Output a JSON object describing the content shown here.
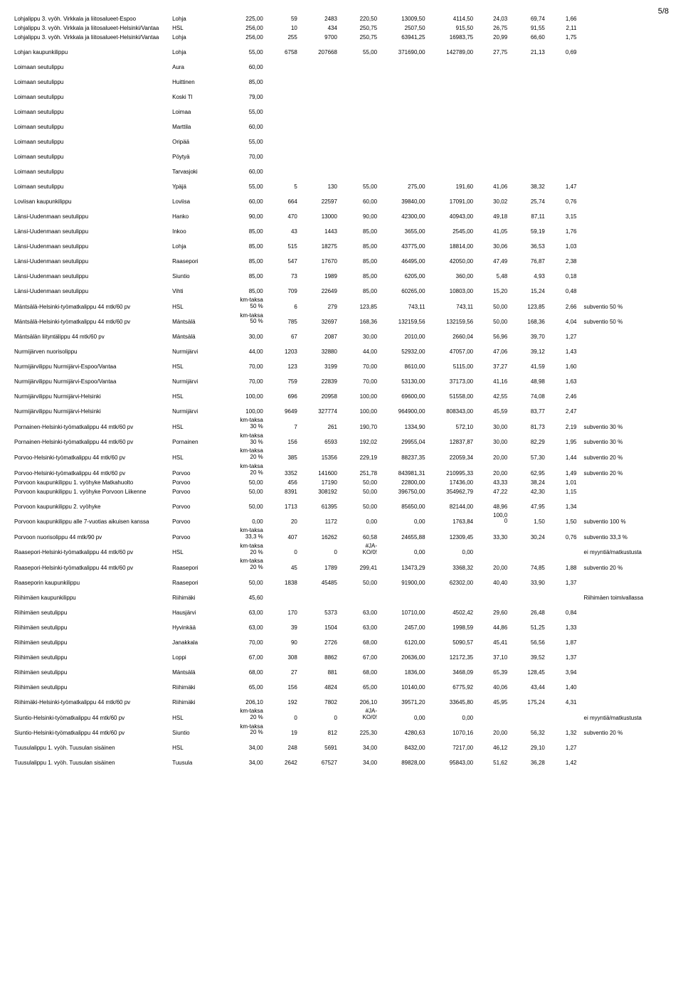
{
  "page_number": "5/8",
  "rows": [
    {
      "sep": false,
      "c": [
        "Lohjalippu 3. vyöh. Virkkala ja liitosalueet-Espoo",
        "Lohja",
        "225,00",
        "59",
        "2483",
        "220,50",
        "13009,50",
        "4114,50",
        "24,03",
        "69,74",
        "1,66",
        ""
      ]
    },
    {
      "sep": false,
      "c": [
        "Lohjalippu 3. vyöh. Virkkala ja liitosalueet-Helsinki/Vantaa",
        "HSL",
        "256,00",
        "10",
        "434",
        "250,75",
        "2507,50",
        "915,50",
        "26,75",
        "91,55",
        "2,11",
        ""
      ]
    },
    {
      "sep": false,
      "c": [
        "Lohjalippu 3. vyöh. Virkkala ja liitosalueet-Helsinki/Vantaa",
        "Lohja",
        "256,00",
        "255",
        "9700",
        "250,75",
        "63941,25",
        "16983,75",
        "20,99",
        "66,60",
        "1,75",
        ""
      ]
    },
    {
      "sep": true,
      "c": [
        "Lohjan kaupunkilippu",
        "Lohja",
        "55,00",
        "6758",
        "207668",
        "55,00",
        "371690,00",
        "142789,00",
        "27,75",
        "21,13",
        "0,69",
        ""
      ]
    },
    {
      "sep": true,
      "c": [
        "Loimaan seutulippu",
        "Aura",
        "60,00",
        "",
        "",
        "",
        "",
        "",
        "",
        "",
        "",
        ""
      ]
    },
    {
      "sep": true,
      "c": [
        "Loimaan seutulippu",
        "Huittinen",
        "85,00",
        "",
        "",
        "",
        "",
        "",
        "",
        "",
        "",
        ""
      ]
    },
    {
      "sep": true,
      "c": [
        "Loimaan seutulippu",
        "Koski Tl",
        "79,00",
        "",
        "",
        "",
        "",
        "",
        "",
        "",
        "",
        ""
      ]
    },
    {
      "sep": true,
      "c": [
        "Loimaan seutulippu",
        "Loimaa",
        "55,00",
        "",
        "",
        "",
        "",
        "",
        "",
        "",
        "",
        ""
      ]
    },
    {
      "sep": true,
      "c": [
        "Loimaan seutulippu",
        "Marttila",
        "60,00",
        "",
        "",
        "",
        "",
        "",
        "",
        "",
        "",
        ""
      ]
    },
    {
      "sep": true,
      "c": [
        "Loimaan seutulippu",
        "Oripää",
        "55,00",
        "",
        "",
        "",
        "",
        "",
        "",
        "",
        "",
        ""
      ]
    },
    {
      "sep": true,
      "c": [
        "Loimaan seutulippu",
        "Pöytyä",
        "70,00",
        "",
        "",
        "",
        "",
        "",
        "",
        "",
        "",
        ""
      ]
    },
    {
      "sep": true,
      "c": [
        "Loimaan seutulippu",
        "Tarvasjoki",
        "60,00",
        "",
        "",
        "",
        "",
        "",
        "",
        "",
        "",
        ""
      ]
    },
    {
      "sep": true,
      "c": [
        "Loimaan seutulippu",
        "Ypäjä",
        "55,00",
        "5",
        "130",
        "55,00",
        "275,00",
        "191,60",
        "41,06",
        "38,32",
        "1,47",
        ""
      ]
    },
    {
      "sep": true,
      "c": [
        "Loviisan kaupunkilippu",
        "Loviisa",
        "60,00",
        "664",
        "22597",
        "60,00",
        "39840,00",
        "17091,00",
        "30,02",
        "25,74",
        "0,76",
        ""
      ]
    },
    {
      "sep": true,
      "c": [
        "Länsi-Uudenmaan seutulippu",
        "Hanko",
        "90,00",
        "470",
        "13000",
        "90,00",
        "42300,00",
        "40943,00",
        "49,18",
        "87,11",
        "3,15",
        ""
      ]
    },
    {
      "sep": true,
      "c": [
        "Länsi-Uudenmaan seutulippu",
        "Inkoo",
        "85,00",
        "43",
        "1443",
        "85,00",
        "3655,00",
        "2545,00",
        "41,05",
        "59,19",
        "1,76",
        ""
      ]
    },
    {
      "sep": true,
      "c": [
        "Länsi-Uudenmaan seutulippu",
        "Lohja",
        "85,00",
        "515",
        "18275",
        "85,00",
        "43775,00",
        "18814,00",
        "30,06",
        "36,53",
        "1,03",
        ""
      ]
    },
    {
      "sep": true,
      "c": [
        "Länsi-Uudenmaan seutulippu",
        "Raasepori",
        "85,00",
        "547",
        "17670",
        "85,00",
        "46495,00",
        "42050,00",
        "47,49",
        "76,87",
        "2,38",
        ""
      ]
    },
    {
      "sep": true,
      "c": [
        "Länsi-Uudenmaan seutulippu",
        "Siuntio",
        "85,00",
        "73",
        "1989",
        "85,00",
        "6205,00",
        "360,00",
        "5,48",
        "4,93",
        "0,18",
        ""
      ]
    },
    {
      "sep": true,
      "c": [
        "Länsi-Uudenmaan seutulippu",
        "Vihti",
        "85,00",
        "709",
        "22649",
        "85,00",
        "60265,00",
        "10803,00",
        "15,20",
        "15,24",
        "0,48",
        ""
      ]
    },
    {
      "sep": false,
      "c": [
        "Mäntsälä-Helsinki-työmatkalippu 44 mtk/60 pv",
        "HSL",
        "km-taksa 50 %",
        "6",
        "279",
        "123,85",
        "743,11",
        "743,11",
        "50,00",
        "123,85",
        "2,66",
        "subventio 50 %"
      ]
    },
    {
      "sep": false,
      "c": [
        "Mäntsälä-Helsinki-työmatkalippu 44 mtk/60 pv",
        "Mäntsälä",
        "km-taksa 50 %",
        "785",
        "32697",
        "168,36",
        "132159,56",
        "132159,56",
        "50,00",
        "168,36",
        "4,04",
        "subventio 50 %"
      ]
    },
    {
      "sep": true,
      "c": [
        "Mäntsälän liityntälippu 44 mtk/60 pv",
        "Mäntsälä",
        "30,00",
        "67",
        "2087",
        "30,00",
        "2010,00",
        "2660,04",
        "56,96",
        "39,70",
        "1,27",
        ""
      ]
    },
    {
      "sep": true,
      "c": [
        "Nurmijärven nuorisolippu",
        "Nurmijärvi",
        "44,00",
        "1203",
        "32880",
        "44,00",
        "52932,00",
        "47057,00",
        "47,06",
        "39,12",
        "1,43",
        ""
      ]
    },
    {
      "sep": true,
      "c": [
        "Nurmijärvilippu Nurmijärvi-Espoo/Vantaa",
        "HSL",
        "70,00",
        "123",
        "3199",
        "70,00",
        "8610,00",
        "5115,00",
        "37,27",
        "41,59",
        "1,60",
        ""
      ]
    },
    {
      "sep": true,
      "c": [
        "Nurmijärvilippu Nurmijärvi-Espoo/Vantaa",
        "Nurmijärvi",
        "70,00",
        "759",
        "22839",
        "70,00",
        "53130,00",
        "37173,00",
        "41,16",
        "48,98",
        "1,63",
        ""
      ]
    },
    {
      "sep": true,
      "c": [
        "Nurmijärvilippu Nurmijärvi-Helsinki",
        "HSL",
        "100,00",
        "696",
        "20958",
        "100,00",
        "69600,00",
        "51558,00",
        "42,55",
        "74,08",
        "2,46",
        ""
      ]
    },
    {
      "sep": true,
      "c": [
        "Nurmijärvilippu Nurmijärvi-Helsinki",
        "Nurmijärvi",
        "100,00",
        "9649",
        "327774",
        "100,00",
        "964900,00",
        "808343,00",
        "45,59",
        "83,77",
        "2,47",
        ""
      ]
    },
    {
      "sep": false,
      "c": [
        "Pornainen-Helsinki-työmatkalippu 44 mtk/60 pv",
        "HSL",
        "km-taksa 30 %",
        "7",
        "261",
        "190,70",
        "1334,90",
        "572,10",
        "30,00",
        "81,73",
        "2,19",
        "subventio 30 %"
      ]
    },
    {
      "sep": false,
      "c": [
        "Pornainen-Helsinki-työmatkalippu 44 mtk/60 pv",
        "Pornainen",
        "km-taksa 30 %",
        "156",
        "6593",
        "192,02",
        "29955,04",
        "12837,87",
        "30,00",
        "82,29",
        "1,95",
        "subventio 30 %"
      ]
    },
    {
      "sep": false,
      "c": [
        "Porvoo-Helsinki-työmatkalippu 44 mtk/60 pv",
        "HSL",
        "km-taksa 20 %",
        "385",
        "15356",
        "229,19",
        "88237,35",
        "22059,34",
        "20,00",
        "57,30",
        "1,44",
        "subventio 20 %"
      ]
    },
    {
      "sep": false,
      "c": [
        "Porvoo-Helsinki-työmatkalippu 44 mtk/60 pv",
        "Porvoo",
        "km-taksa 20 %",
        "3352",
        "141600",
        "251,78",
        "843981,31",
        "210995,33",
        "20,00",
        "62,95",
        "1,49",
        "subventio 20 %"
      ]
    },
    {
      "sep": false,
      "c": [
        "Porvoon kaupunkilippu 1. vyöhyke Matkahuolto",
        "Porvoo",
        "50,00",
        "456",
        "17190",
        "50,00",
        "22800,00",
        "17436,00",
        "43,33",
        "38,24",
        "1,01",
        ""
      ]
    },
    {
      "sep": false,
      "c": [
        "Porvoon kaupunkilippu 1. vyöhyke Porvoon Liikenne",
        "Porvoo",
        "50,00",
        "8391",
        "308192",
        "50,00",
        "396750,00",
        "354962,79",
        "47,22",
        "42,30",
        "1,15",
        ""
      ]
    },
    {
      "sep": true,
      "c": [
        "Porvoon kaupunkilippu 2. vyöhyke",
        "Porvoo",
        "50,00",
        "1713",
        "61395",
        "50,00",
        "85650,00",
        "82144,00",
        "48,96",
        "47,95",
        "1,34",
        ""
      ]
    },
    {
      "sep": false,
      "c": [
        "Porvoon kaupunkilippu alle 7-vuotias aikuisen kanssa",
        "Porvoo",
        "0,00",
        "20",
        "1172",
        "0,00",
        "0,00",
        "1763,84",
        "100,00",
        "1,50",
        "1,50",
        "subventio 100 %"
      ]
    },
    {
      "sep": false,
      "c": [
        "Porvoon nuorisolippu 44 mtk/90 pv",
        "Porvoo",
        "km-taksa 33,3 %",
        "407",
        "16262",
        "60,58",
        "24655,88",
        "12309,45",
        "33,30",
        "30,24",
        "0,76",
        "subventio 33,3 %"
      ]
    },
    {
      "sep": false,
      "c": [
        "Raasepori-Helsinki-työmatkalippu 44 mtk/60 pv",
        "HSL",
        "km-taksa 20 %",
        "0",
        "0",
        "#JA-KO/0!",
        "0,00",
        "0,00",
        "",
        "",
        "",
        "ei myyntiä/matkustusta"
      ]
    },
    {
      "sep": false,
      "c": [
        "Raasepori-Helsinki-työmatkalippu 44 mtk/60 pv",
        "Raasepori",
        "km-taksa 20 %",
        "45",
        "1789",
        "299,41",
        "13473,29",
        "3368,32",
        "20,00",
        "74,85",
        "1,88",
        "subventio 20 %"
      ]
    },
    {
      "sep": true,
      "c": [
        "Raaseporin kaupunkilippu",
        "Raasepori",
        "50,00",
        "1838",
        "45485",
        "50,00",
        "91900,00",
        "62302,00",
        "40,40",
        "33,90",
        "1,37",
        ""
      ]
    },
    {
      "sep": true,
      "c": [
        "Riihimäen kaupunkilippu",
        "Riihimäki",
        "45,60",
        "",
        "",
        "",
        "",
        "",
        "",
        "",
        "",
        "Riihimäen toimivallassa"
      ]
    },
    {
      "sep": true,
      "c": [
        "Riihimäen seutulippu",
        "Hausjärvi",
        "63,00",
        "170",
        "5373",
        "63,00",
        "10710,00",
        "4502,42",
        "29,60",
        "26,48",
        "0,84",
        ""
      ]
    },
    {
      "sep": true,
      "c": [
        "Riihimäen seutulippu",
        "Hyvinkää",
        "63,00",
        "39",
        "1504",
        "63,00",
        "2457,00",
        "1998,59",
        "44,86",
        "51,25",
        "1,33",
        ""
      ]
    },
    {
      "sep": true,
      "c": [
        "Riihimäen seutulippu",
        "Janakkala",
        "70,00",
        "90",
        "2726",
        "68,00",
        "6120,00",
        "5090,57",
        "45,41",
        "56,56",
        "1,87",
        ""
      ]
    },
    {
      "sep": true,
      "c": [
        "Riihimäen seutulippu",
        "Loppi",
        "67,00",
        "308",
        "8862",
        "67,00",
        "20636,00",
        "12172,35",
        "37,10",
        "39,52",
        "1,37",
        ""
      ]
    },
    {
      "sep": true,
      "c": [
        "Riihimäen seutulippu",
        "Mäntsälä",
        "68,00",
        "27",
        "881",
        "68,00",
        "1836,00",
        "3468,09",
        "65,39",
        "128,45",
        "3,94",
        ""
      ]
    },
    {
      "sep": true,
      "c": [
        "Riihimäen seutulippu",
        "Riihimäki",
        "65,00",
        "156",
        "4824",
        "65,00",
        "10140,00",
        "6775,92",
        "40,06",
        "43,44",
        "1,40",
        ""
      ]
    },
    {
      "sep": true,
      "c": [
        "Riihimäki-Helsinki-työmatkalippu 44 mtk/60 pv",
        "Riihimäki",
        "206,10",
        "192",
        "7802",
        "206,10",
        "39571,20",
        "33645,80",
        "45,95",
        "175,24",
        "4,31",
        ""
      ]
    },
    {
      "sep": false,
      "c": [
        "Siuntio-Helsinki-työmatkalippu 44 mtk/60 pv",
        "HSL",
        "km-taksa 20 %",
        "0",
        "0",
        "#JA-KO/0!",
        "0,00",
        "0,00",
        "",
        "",
        "",
        "ei myyntiä/matkustusta"
      ]
    },
    {
      "sep": false,
      "c": [
        "Siuntio-Helsinki-työmatkalippu 44 mtk/60 pv",
        "Siuntio",
        "km-taksa 20 %",
        "19",
        "812",
        "225,30",
        "4280,63",
        "1070,16",
        "20,00",
        "56,32",
        "1,32",
        "subventio 20 %"
      ]
    },
    {
      "sep": true,
      "c": [
        "Tuusulalippu 1. vyöh. Tuusulan sisäinen",
        "HSL",
        "34,00",
        "248",
        "5691",
        "34,00",
        "8432,00",
        "7217,00",
        "46,12",
        "29,10",
        "1,27",
        ""
      ]
    },
    {
      "sep": true,
      "c": [
        "Tuusulalippu 1. vyöh. Tuusulan sisäinen",
        "Tuusula",
        "34,00",
        "2642",
        "67527",
        "34,00",
        "89828,00",
        "95843,00",
        "51,62",
        "36,28",
        "1,42",
        ""
      ]
    }
  ]
}
